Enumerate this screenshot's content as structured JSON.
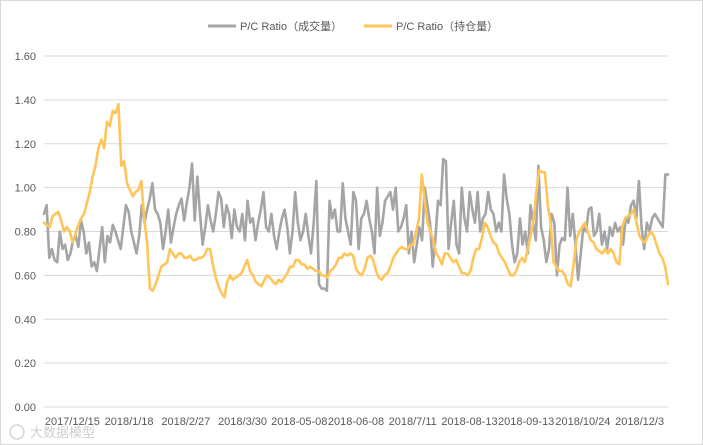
{
  "chart_data": {
    "type": "line",
    "title": "",
    "xlabel": "",
    "ylabel": "",
    "ylim": [
      0,
      1.6
    ],
    "yticks": [
      "0.00",
      "0.20",
      "0.40",
      "0.60",
      "0.80",
      "1.00",
      "1.20",
      "1.40",
      "1.60"
    ],
    "grid": true,
    "legend_position": "top-center",
    "x_tick_labels": [
      "2017/12/15",
      "2018/1/18",
      "2018/2/27",
      "2018/3/30",
      "2018-05-08",
      "2018-06-08",
      "2018/7/11",
      "2018-08-13",
      "2018-09-13",
      "2018/10/24",
      "2018/12/3"
    ],
    "series": [
      {
        "name": "P/C Ratio（成交量）",
        "color": "#a5a5a5",
        "values": [
          0.88,
          0.92,
          0.68,
          0.72,
          0.67,
          0.66,
          0.8,
          0.72,
          0.74,
          0.67,
          0.7,
          0.76,
          0.78,
          0.73,
          0.85,
          0.8,
          0.7,
          0.75,
          0.64,
          0.66,
          0.62,
          0.72,
          0.82,
          0.66,
          0.78,
          0.75,
          0.83,
          0.8,
          0.76,
          0.72,
          0.82,
          0.92,
          0.89,
          0.8,
          0.75,
          0.7,
          0.78,
          0.92,
          0.84,
          0.9,
          0.95,
          1.02,
          0.9,
          0.88,
          0.84,
          0.72,
          0.8,
          0.9,
          0.75,
          0.82,
          0.88,
          0.92,
          0.95,
          0.85,
          0.93,
          1.0,
          1.11,
          0.85,
          1.05,
          0.88,
          0.74,
          0.82,
          0.92,
          0.85,
          0.8,
          0.88,
          0.98,
          0.95,
          0.82,
          0.92,
          0.88,
          0.77,
          0.9,
          0.82,
          0.8,
          0.88,
          0.76,
          0.94,
          0.84,
          0.86,
          0.76,
          0.84,
          0.9,
          0.98,
          0.82,
          0.8,
          0.88,
          0.78,
          0.72,
          0.8,
          0.86,
          0.9,
          0.82,
          0.7,
          0.8,
          0.98,
          0.84,
          0.76,
          0.8,
          0.88,
          0.78,
          0.7,
          0.84,
          1.03,
          0.56,
          0.54,
          0.54,
          0.53,
          0.94,
          0.86,
          0.9,
          0.8,
          0.8,
          1.02,
          0.86,
          0.8,
          0.74,
          0.98,
          0.94,
          0.72,
          0.86,
          0.88,
          0.94,
          0.86,
          0.8,
          0.7,
          1.0,
          0.78,
          0.84,
          0.94,
          0.96,
          0.98,
          0.9,
          1.0,
          0.8,
          0.82,
          0.86,
          0.92,
          0.7,
          0.8,
          0.66,
          0.74,
          0.82,
          0.76,
          1.0,
          0.92,
          0.84,
          0.64,
          0.76,
          0.94,
          0.92,
          1.13,
          1.12,
          0.72,
          0.84,
          0.94,
          0.74,
          0.7,
          1.0,
          0.86,
          0.8,
          0.98,
          0.9,
          0.84,
          0.98,
          0.8,
          0.86,
          0.88,
          0.98,
          0.9,
          0.88,
          0.8,
          0.84,
          0.8,
          1.06,
          0.95,
          0.88,
          0.74,
          0.66,
          0.7,
          0.86,
          0.74,
          0.8,
          0.7,
          0.92,
          0.84,
          0.76,
          1.1,
          0.82,
          0.76,
          0.66,
          0.72,
          0.88,
          0.84,
          0.6,
          0.74,
          0.77,
          0.76,
          1.0,
          0.78,
          0.88,
          0.74,
          0.58,
          0.7,
          0.82,
          0.8,
          0.9,
          0.91,
          0.78,
          0.8,
          0.88,
          0.74,
          0.8,
          0.72,
          0.82,
          0.78,
          0.84,
          0.8,
          0.82,
          0.74,
          0.86,
          0.84,
          0.92,
          0.94,
          0.86,
          1.03,
          0.82,
          0.72,
          0.84,
          0.8,
          0.86,
          0.88,
          0.86,
          0.84,
          0.82,
          1.06,
          1.06
        ]
      },
      {
        "name": "P/C Ratio（持仓量）",
        "color": "#ffc55a",
        "values": [
          0.84,
          0.83,
          0.82,
          0.87,
          0.88,
          0.89,
          0.85,
          0.8,
          0.82,
          0.8,
          0.75,
          0.79,
          0.83,
          0.86,
          0.88,
          0.93,
          0.98,
          1.05,
          1.1,
          1.18,
          1.22,
          1.18,
          1.3,
          1.28,
          1.35,
          1.34,
          1.38,
          1.1,
          1.12,
          1.02,
          0.99,
          0.96,
          0.98,
          0.99,
          1.03,
          0.86,
          0.75,
          0.54,
          0.53,
          0.56,
          0.6,
          0.64,
          0.65,
          0.66,
          0.72,
          0.7,
          0.68,
          0.7,
          0.7,
          0.68,
          0.68,
          0.69,
          0.67,
          0.67,
          0.68,
          0.68,
          0.69,
          0.72,
          0.72,
          0.65,
          0.59,
          0.55,
          0.52,
          0.5,
          0.57,
          0.6,
          0.58,
          0.59,
          0.6,
          0.61,
          0.64,
          0.67,
          0.62,
          0.6,
          0.57,
          0.56,
          0.55,
          0.58,
          0.6,
          0.59,
          0.57,
          0.56,
          0.58,
          0.57,
          0.59,
          0.61,
          0.64,
          0.64,
          0.67,
          0.67,
          0.65,
          0.65,
          0.63,
          0.64,
          0.63,
          0.62,
          0.62,
          0.6,
          0.6,
          0.59,
          0.62,
          0.63,
          0.65,
          0.68,
          0.68,
          0.7,
          0.69,
          0.7,
          0.69,
          0.63,
          0.61,
          0.6,
          0.63,
          0.68,
          0.69,
          0.67,
          0.62,
          0.59,
          0.58,
          0.6,
          0.61,
          0.64,
          0.68,
          0.7,
          0.72,
          0.73,
          0.72,
          0.72,
          0.74,
          0.74,
          0.8,
          0.86,
          1.06,
          0.94,
          0.84,
          0.8,
          0.76,
          0.7,
          0.68,
          0.65,
          0.7,
          0.7,
          0.68,
          0.66,
          0.67,
          0.64,
          0.61,
          0.61,
          0.6,
          0.62,
          0.68,
          0.72,
          0.72,
          0.77,
          0.84,
          0.82,
          0.78,
          0.75,
          0.74,
          0.7,
          0.68,
          0.66,
          0.63,
          0.6,
          0.6,
          0.62,
          0.66,
          0.68,
          0.66,
          0.72,
          0.78,
          0.85,
          0.98,
          1.08,
          1.07,
          1.07,
          0.92,
          0.84,
          0.66,
          0.64,
          0.62,
          0.62,
          0.6,
          0.56,
          0.55,
          0.65,
          0.76,
          0.8,
          0.82,
          0.84,
          0.8,
          0.76,
          0.75,
          0.72,
          0.71,
          0.7,
          0.72,
          0.7,
          0.72,
          0.7,
          0.66,
          0.65,
          0.82,
          0.86,
          0.87,
          0.88,
          0.9,
          0.84,
          0.78,
          0.76,
          0.75,
          0.78,
          0.8,
          0.78,
          0.74,
          0.7,
          0.68,
          0.64,
          0.56
        ]
      }
    ]
  },
  "watermark": "大数据模型"
}
